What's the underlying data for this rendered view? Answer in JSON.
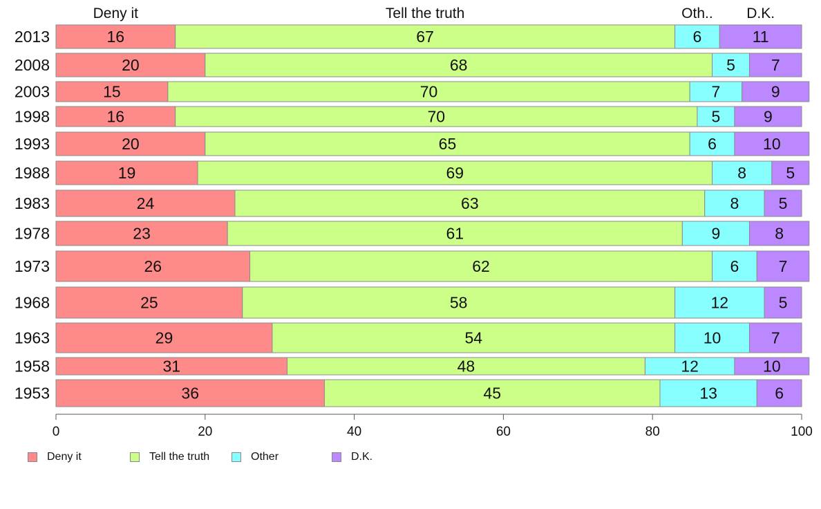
{
  "chart_data": {
    "type": "bar",
    "orientation": "horizontal",
    "stacked": true,
    "categories": [
      "2013",
      "2008",
      "2003",
      "1998",
      "1993",
      "1988",
      "1983",
      "1978",
      "1973",
      "1968",
      "1963",
      "1958",
      "1953"
    ],
    "series": [
      {
        "name": "Deny it",
        "header": "Deny it",
        "color": "#ff8a8a",
        "values": [
          16,
          20,
          15,
          16,
          20,
          19,
          24,
          23,
          26,
          25,
          29,
          31,
          36
        ]
      },
      {
        "name": "Tell the truth",
        "header": "Tell the truth",
        "color": "#ccff88",
        "values": [
          67,
          68,
          70,
          70,
          65,
          69,
          63,
          61,
          62,
          58,
          54,
          48,
          45
        ]
      },
      {
        "name": "Other",
        "header": "Oth..",
        "color": "#88ffff",
        "values": [
          6,
          5,
          7,
          5,
          6,
          8,
          8,
          9,
          6,
          12,
          10,
          12,
          13
        ]
      },
      {
        "name": "D.K.",
        "header": "D.K.",
        "color": "#bb88ff",
        "values": [
          11,
          7,
          9,
          9,
          10,
          5,
          5,
          8,
          7,
          5,
          7,
          10,
          6
        ]
      }
    ],
    "xlim": [
      0,
      100
    ],
    "xticks": [
      "0",
      "20",
      "40",
      "60",
      "80",
      "100"
    ],
    "legend_position": "bottom-left",
    "grid": false
  }
}
